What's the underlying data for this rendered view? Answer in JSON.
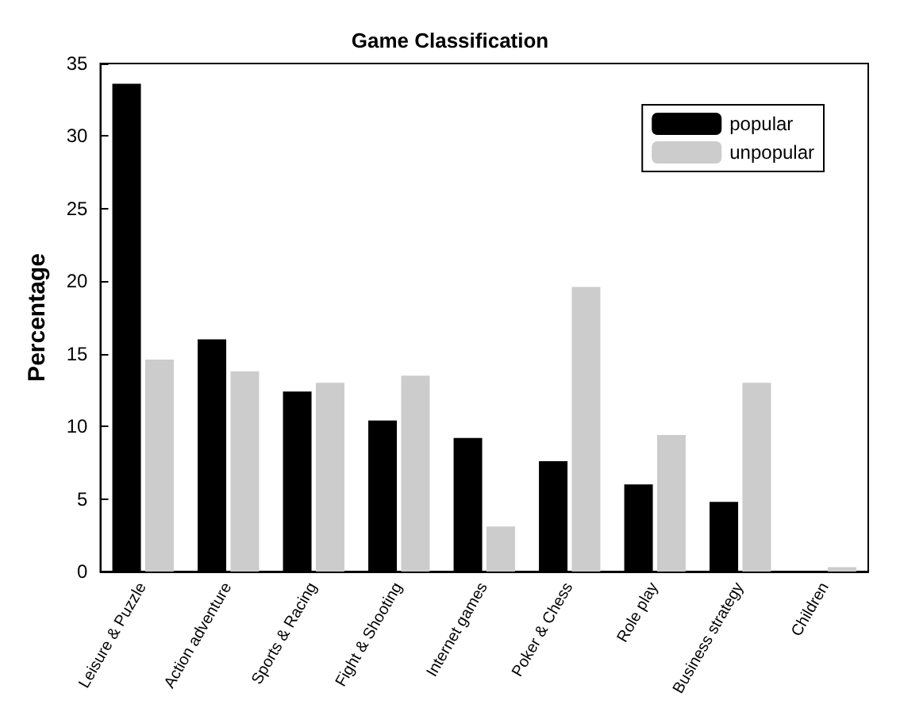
{
  "chart_data": {
    "type": "bar",
    "title": "Game Classification",
    "ylabel": "Percentage",
    "categories": [
      "Leisure & Puzzle",
      "Action adventure",
      "Sports & Racing",
      "Fight & Shooting",
      "Internet games",
      "Poker & Chess",
      "Role play",
      "Business strategy",
      "Children"
    ],
    "series": [
      {
        "name": "popular",
        "color": "#000000",
        "values": [
          33.6,
          16.0,
          12.4,
          10.4,
          9.2,
          7.6,
          6.0,
          4.8,
          0
        ]
      },
      {
        "name": "unpopular",
        "color": "#cccccc",
        "values": [
          14.6,
          13.8,
          13.0,
          13.5,
          3.1,
          19.6,
          9.4,
          13.0,
          0.3
        ]
      }
    ],
    "ylim": [
      0,
      35
    ],
    "yticks": [
      0,
      5,
      10,
      15,
      20,
      25,
      30,
      35
    ],
    "grid": false,
    "legend": "top right"
  }
}
